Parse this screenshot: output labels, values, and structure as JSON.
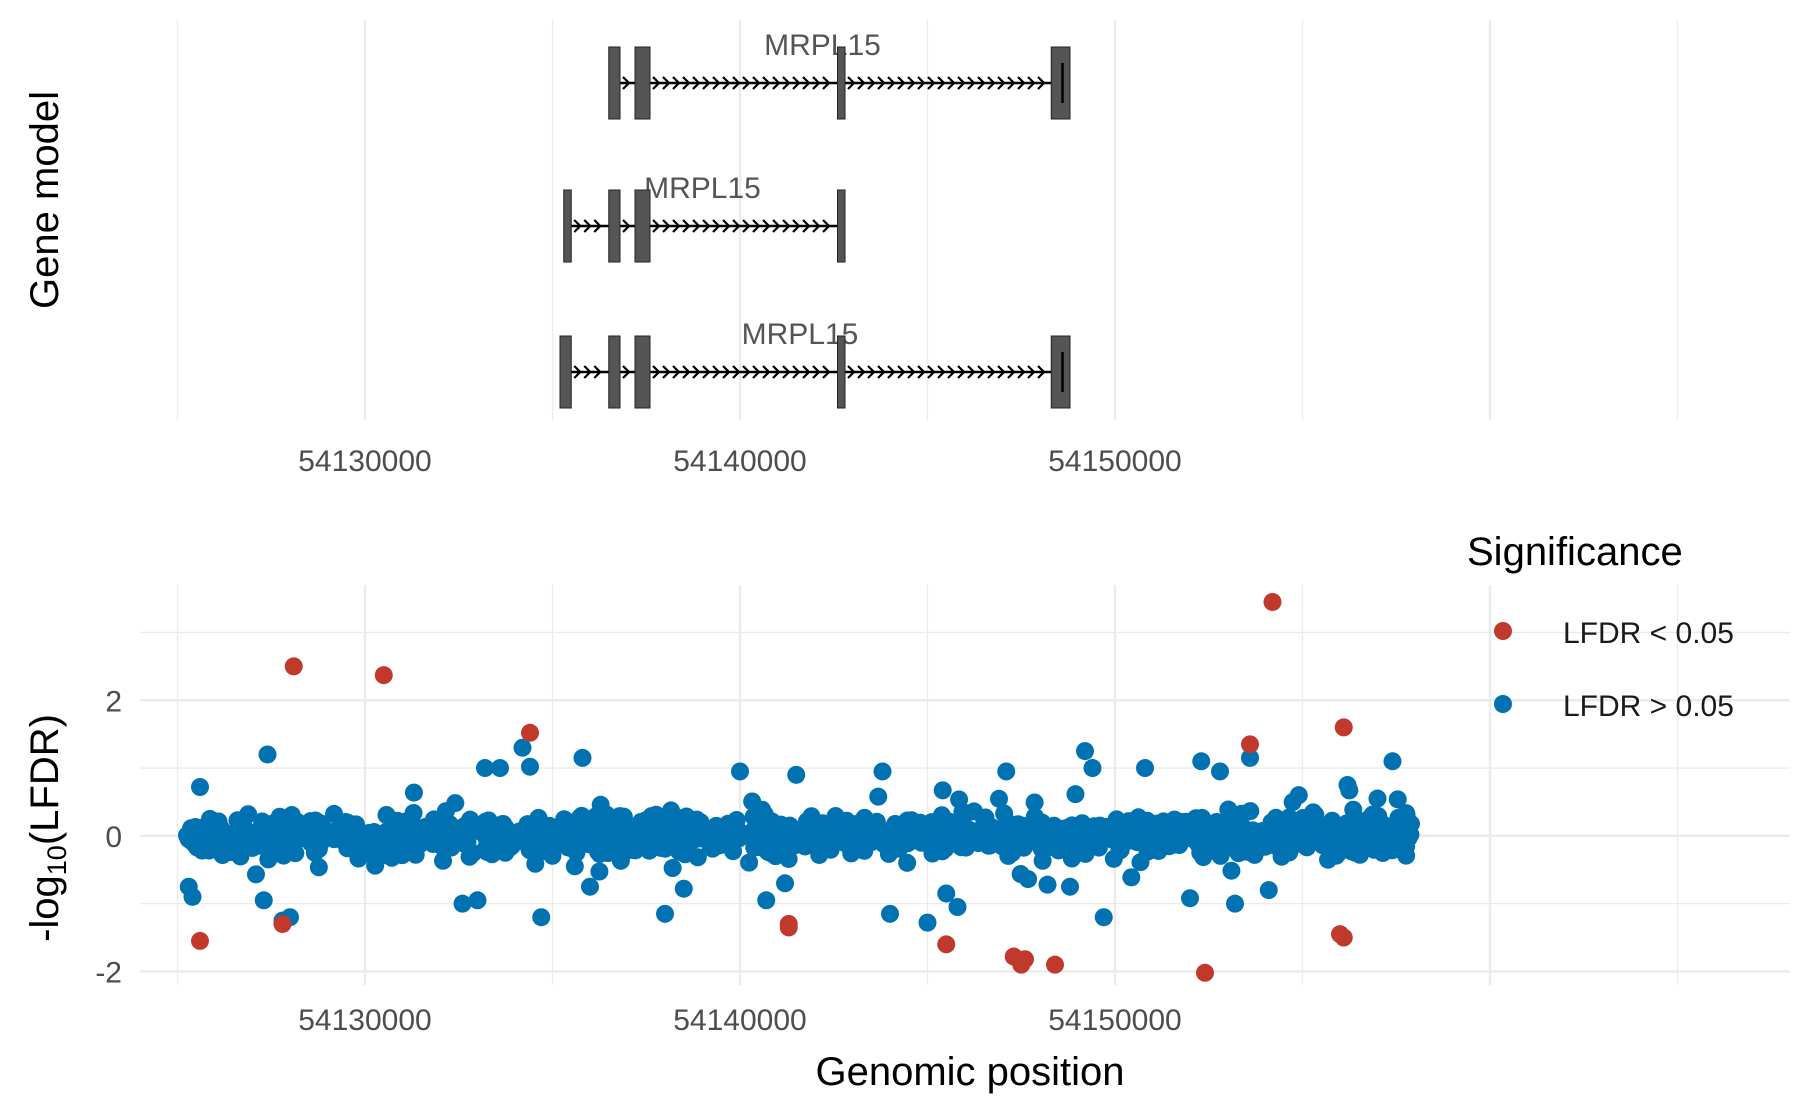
{
  "chart_data": [
    {
      "type": "gene-model",
      "ylabel": "Gene model",
      "xlim": [
        54124000,
        54168000
      ],
      "x_ticks": [
        54130000,
        54140000,
        54150000
      ],
      "x_tick_labels": [
        "54130000",
        "54140000",
        "54150000"
      ],
      "grid": true,
      "transcripts": [
        {
          "label": "MRPL15",
          "label_x": 54142200,
          "start": 54136500,
          "end": 54148800,
          "exons": [
            [
              54136500,
              54136800
            ],
            [
              54137200,
              54137600
            ],
            [
              54142600,
              54142800
            ],
            [
              54148300,
              54148800
            ]
          ],
          "marker": 54148600
        },
        {
          "label": "MRPL15",
          "label_x": 54139000,
          "start": 54135300,
          "end": 54142800,
          "exons": [
            [
              54135300,
              54135500
            ],
            [
              54136500,
              54136800
            ],
            [
              54137200,
              54137600
            ],
            [
              54142600,
              54142800
            ]
          ],
          "marker": null
        },
        {
          "label": "MRPL15",
          "label_x": 54141600,
          "start": 54135200,
          "end": 54148800,
          "exons": [
            [
              54135200,
              54135500
            ],
            [
              54136500,
              54136800
            ],
            [
              54137200,
              54137600
            ],
            [
              54142600,
              54142800
            ],
            [
              54148300,
              54148800
            ]
          ],
          "marker": 54148600
        }
      ]
    },
    {
      "type": "scatter",
      "xlabel": "Genomic position",
      "ylabel_main": "-log",
      "ylabel_sub": "10",
      "ylabel_tail": "(LFDR)",
      "xlim": [
        54124000,
        54168000
      ],
      "ylim": [
        -2.2,
        3.7
      ],
      "x_ticks": [
        54130000,
        54140000,
        54150000
      ],
      "x_tick_labels": [
        "54130000",
        "54140000",
        "54150000"
      ],
      "y_ticks": [
        -2,
        0,
        2
      ],
      "y_tick_labels": [
        "-2",
        "0",
        "2"
      ],
      "grid": true,
      "legend": {
        "title": "Significance",
        "position": "top-right",
        "entries": [
          {
            "label": "LFDR < 0.05",
            "color": "#c0392b"
          },
          {
            "label": "LFDR > 0.05",
            "color": "#0072b2"
          }
        ]
      },
      "significant_points": {
        "name": "LFDR < 0.05",
        "color": "#c0392b",
        "points": [
          [
            54125600,
            -1.55
          ],
          [
            54128100,
            2.5
          ],
          [
            54127800,
            -1.3
          ],
          [
            54130500,
            2.37
          ],
          [
            54134400,
            1.52
          ],
          [
            54141300,
            -1.35
          ],
          [
            54141300,
            -1.3
          ],
          [
            54145500,
            -1.6
          ],
          [
            54147300,
            -1.78
          ],
          [
            54147500,
            -1.9
          ],
          [
            54147600,
            -1.82
          ],
          [
            54148400,
            -1.9
          ],
          [
            54152400,
            -2.02
          ],
          [
            54153600,
            1.35
          ],
          [
            54154200,
            3.45
          ],
          [
            54156100,
            1.6
          ],
          [
            54156000,
            -1.45
          ],
          [
            54156100,
            -1.5
          ]
        ]
      },
      "nonsignificant_points": {
        "name": "LFDR > 0.05",
        "color": "#0072b2",
        "count": 1150,
        "x_range": [
          54125200,
          54157900
        ],
        "spread_sd": 0.14,
        "outliers": [
          [
            54127400,
            1.2
          ],
          [
            54125600,
            0.72
          ],
          [
            54125300,
            -0.75
          ],
          [
            54125400,
            -0.9
          ],
          [
            54127300,
            -0.95
          ],
          [
            54128000,
            -1.2
          ],
          [
            54127800,
            -1.25
          ],
          [
            54132600,
            -1.0
          ],
          [
            54133000,
            -0.95
          ],
          [
            54133200,
            1.0
          ],
          [
            54133600,
            1.0
          ],
          [
            54134200,
            1.3
          ],
          [
            54134400,
            1.02
          ],
          [
            54134700,
            -1.2
          ],
          [
            54135800,
            1.15
          ],
          [
            54136000,
            -0.75
          ],
          [
            54138000,
            -1.15
          ],
          [
            54138500,
            -0.78
          ],
          [
            54140000,
            0.95
          ],
          [
            54140700,
            -0.95
          ],
          [
            54141200,
            -0.7
          ],
          [
            54141500,
            0.9
          ],
          [
            54143800,
            0.95
          ],
          [
            54144000,
            -1.15
          ],
          [
            54145000,
            -1.28
          ],
          [
            54145500,
            -0.85
          ],
          [
            54145800,
            -1.05
          ],
          [
            54147100,
            0.95
          ],
          [
            54148200,
            -0.72
          ],
          [
            54148800,
            -0.75
          ],
          [
            54149200,
            1.25
          ],
          [
            54149400,
            1.0
          ],
          [
            54149700,
            -1.2
          ],
          [
            54150800,
            1.0
          ],
          [
            54152300,
            1.1
          ],
          [
            54152000,
            -0.92
          ],
          [
            54152800,
            0.95
          ],
          [
            54153600,
            1.15
          ],
          [
            54153200,
            -1.0
          ],
          [
            54154100,
            -0.8
          ],
          [
            54156200,
            0.75
          ],
          [
            54157400,
            1.1
          ],
          [
            54157000,
            0.55
          ],
          [
            54154900,
            0.6
          ]
        ]
      }
    }
  ]
}
